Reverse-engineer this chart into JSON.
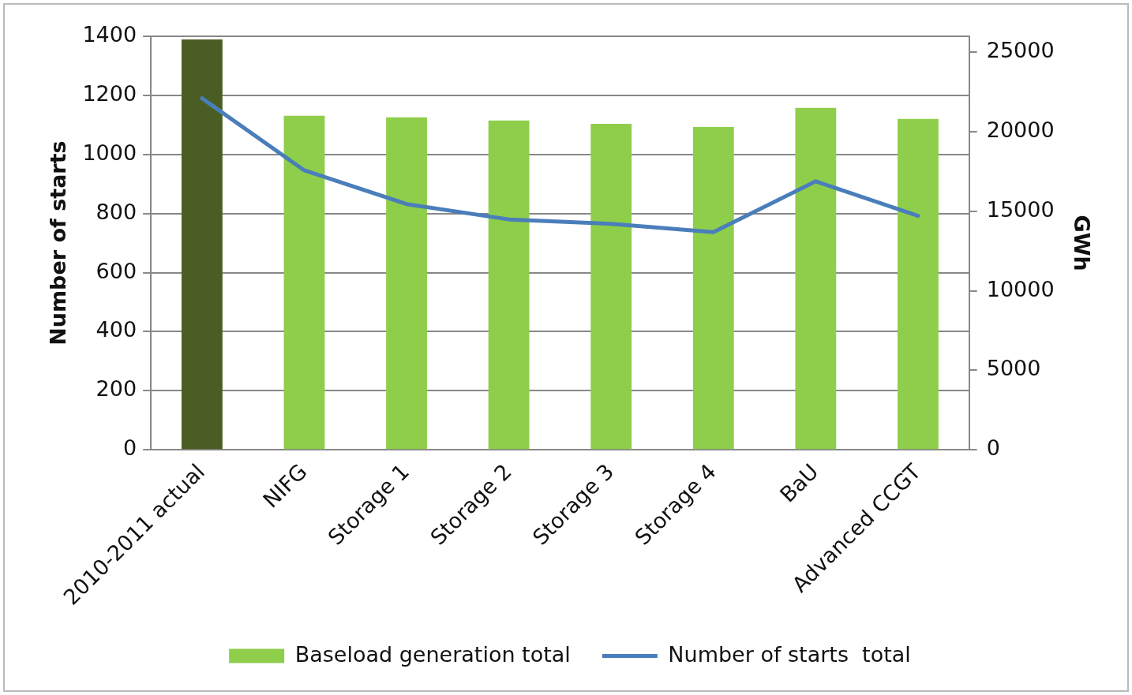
{
  "chart_data": {
    "type": "bar",
    "categories": [
      "2010-2011 actual",
      "NIFG",
      "Storage 1",
      "Storage 2",
      "Storage 3",
      "Storage 4",
      "BaU",
      "Advanced CCGT"
    ],
    "series": [
      {
        "name": "Baseload generation total",
        "axis": "y2",
        "color": "#8fce4a",
        "colors": [
          "#4a5e23",
          "#8fce4a",
          "#8fce4a",
          "#8fce4a",
          "#8fce4a",
          "#8fce4a",
          "#8fce4a",
          "#8fce4a"
        ],
        "values": [
          25800,
          21000,
          20900,
          20700,
          20500,
          20300,
          21500,
          20800
        ]
      },
      {
        "name": "Number of starts  total",
        "type": "line",
        "axis": "y",
        "color": "#4a7ebb",
        "values": [
          1190,
          946,
          832,
          780,
          765,
          737,
          909,
          792
        ]
      }
    ],
    "ylabel": "Number of starts",
    "y2label": "GWh",
    "ylim": [
      0,
      1400
    ],
    "yticks": [
      0,
      200,
      400,
      600,
      800,
      1000,
      1200,
      1400
    ],
    "y2lim": [
      0,
      26000
    ],
    "y2ticks": [
      0,
      5000,
      10000,
      15000,
      20000,
      25000
    ],
    "grid": "y",
    "legend": "bottom",
    "marker": "none"
  }
}
